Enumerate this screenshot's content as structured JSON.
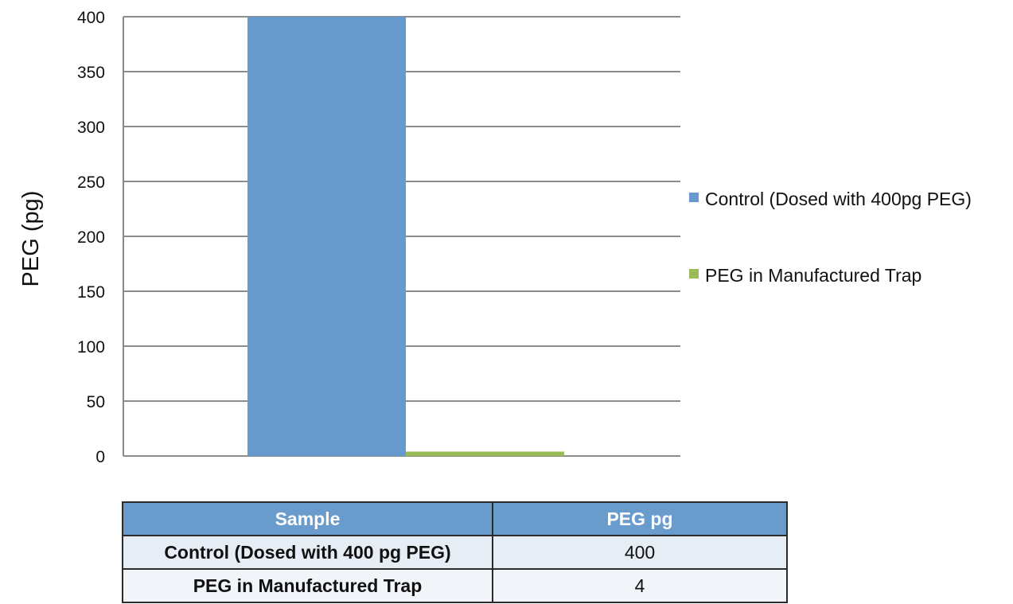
{
  "chart_data": {
    "type": "bar",
    "ylabel": "PEG (pg)",
    "xlabel": "",
    "ylim": [
      0,
      400
    ],
    "yticks": [
      0,
      50,
      100,
      150,
      200,
      250,
      300,
      350,
      400
    ],
    "grid": true,
    "legend_position": "right",
    "series": [
      {
        "name": "Control (Dosed with 400pg PEG)",
        "values": [
          400
        ],
        "color": "#6699cc"
      },
      {
        "name": "PEG in Manufactured Trap",
        "values": [
          4
        ],
        "color": "#9bbb59"
      }
    ]
  },
  "table": {
    "headers": [
      "Sample",
      "PEG pg"
    ],
    "rows": [
      [
        "Control (Dosed with 400 pg PEG)",
        "400"
      ],
      [
        "PEG in Manufactured Trap",
        "4"
      ]
    ]
  }
}
